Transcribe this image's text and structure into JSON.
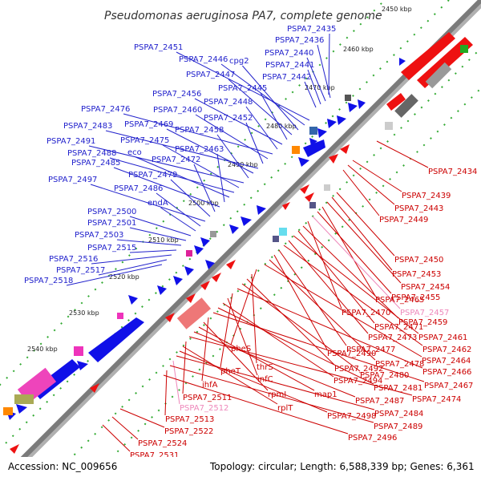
{
  "title": "Pseudomonas aeruginosa PA7, complete genome",
  "accession": "Accession: NC_009656",
  "topology": "Topology: circular; Length: 6,588,339 bp; Genes: 6,361",
  "colors": {
    "forward_label": "#2222cc",
    "reverse_label": "#cc0000",
    "pink_label": "#ee88bb",
    "forward_gene": "#1010e8",
    "reverse_gene": "#ee1111",
    "backbone": "#808080",
    "tick": "#22aa22"
  },
  "ruler_ticks": [
    "2450 kbp",
    "2460 kbp",
    "2470 kbp",
    "2480 kbp",
    "2490 kbp",
    "2500 kbp",
    "2510 kbp",
    "2520 kbp",
    "2530 kbp",
    "2540 kbp"
  ],
  "forward_labels": [
    "PSPA7_2435",
    "PSPA7_2436",
    "PSPA7_2440",
    "PSPA7_2441",
    "PSPA7_2442",
    "PSPA7_2451",
    "PSPA7_2446",
    "cpg2",
    "PSPA7_2447",
    "PSPA7_2445",
    "PSPA7_2456",
    "PSPA7_2448",
    "PSPA7_2476",
    "PSPA7_2460",
    "PSPA7_2452",
    "PSPA7_2483",
    "PSPA7_2469",
    "PSPA7_2458",
    "PSPA7_2491",
    "PSPA7_2475",
    "PSPA7_2488",
    "eco",
    "PSPA7_2463",
    "PSPA7_2485",
    "PSPA7_2472",
    "PSPA7_2479",
    "PSPA7_2497",
    "PSPA7_2486",
    "endA",
    "PSPA7_2500",
    "PSPA7_2501",
    "PSPA7_2503",
    "PSPA7_2515",
    "PSPA7_2516",
    "PSPA7_2517",
    "PSPA7_2518"
  ],
  "reverse_labels": [
    "PSPA7_2434",
    "PSPA7_2439",
    "PSPA7_2443",
    "PSPA7_2449",
    "PSPA7_2450",
    "PSPA7_2453",
    "PSPA7_2454",
    "PSPA7_2465",
    "PSPA7_2455",
    "PSPA7_2457",
    "PSPA7_2470",
    "PSPA7_2459",
    "PSPA7_2471",
    "PSPA7_2461",
    "PSPA7_2473",
    "PSPA7_2462",
    "PSPA7_2477",
    "PSPA7_2490",
    "PSPA7_2478",
    "PSPA7_2464",
    "pheS",
    "thrS",
    "PSPA7_2492",
    "PSPA7_2480",
    "PSPA7_2466",
    "pheT",
    "infC",
    "PSPA7_2494",
    "PSPA7_2481",
    "PSPA7_2467",
    "ihfA",
    "rpmI",
    "map1",
    "PSPA7_2487",
    "PSPA7_2474",
    "PSPA7_2511",
    "rplT",
    "PSPA7_2498",
    "PSPA7_2484",
    "PSPA7_2512",
    "PSPA7_2489",
    "PSPA7_2513",
    "PSPA7_2522",
    "PSPA7_2496",
    "PSPA7_2524",
    "PSPA7_2531"
  ]
}
